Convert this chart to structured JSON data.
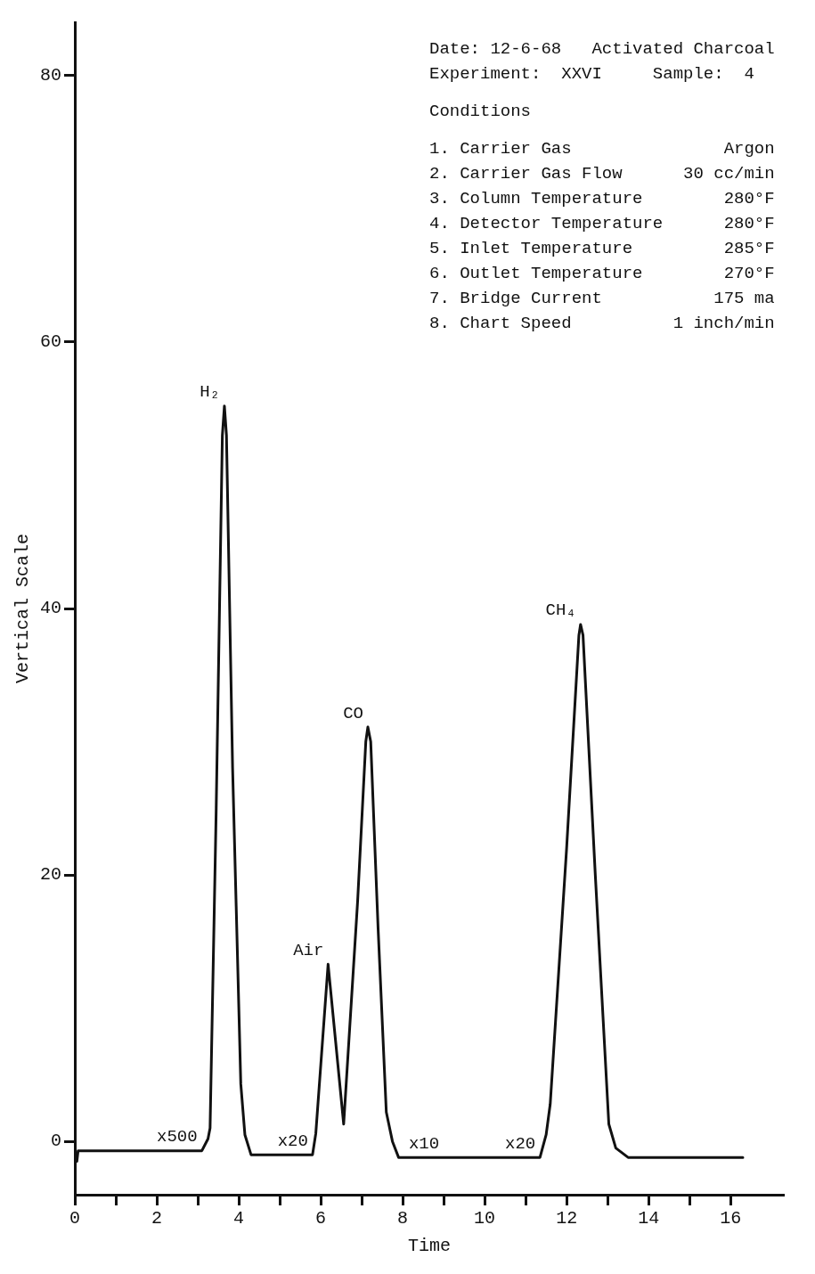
{
  "chart_data": {
    "type": "line",
    "xlabel": "Time",
    "ylabel": "Vertical Scale",
    "xlim": [
      0,
      17.3
    ],
    "ylim": [
      -4,
      84
    ],
    "xticks": [
      0,
      {
        "value": 1,
        "label": null
      },
      2,
      {
        "value": 3,
        "label": null
      },
      4,
      {
        "value": 5,
        "label": null
      },
      6,
      {
        "value": 7,
        "label": null
      },
      8,
      {
        "value": 9,
        "label": null
      },
      10,
      {
        "value": 11,
        "label": null
      },
      12,
      {
        "value": 13,
        "label": null
      },
      14,
      {
        "value": 15,
        "label": null
      },
      16
    ],
    "yticks": [
      0,
      20,
      40,
      60,
      80
    ],
    "grid": false,
    "legend": false,
    "marker": "none",
    "line_style": "solid",
    "series": [
      {
        "color": "#111111",
        "x": [
          0.05,
          0.08,
          1,
          2,
          3.1,
          3.25,
          3.3,
          3.45,
          3.6,
          3.65,
          3.7,
          3.85,
          4.05,
          4.15,
          4.3,
          5.0,
          5.8,
          5.88,
          6.18,
          6.56,
          6.9,
          7.1,
          7.15,
          7.22,
          7.4,
          7.6,
          7.75,
          7.9,
          9,
          10,
          11.35,
          11.5,
          11.6,
          12.0,
          12.3,
          12.34,
          12.4,
          12.7,
          13.03,
          13.2,
          13.5,
          15,
          16.3
        ],
        "values": [
          -1.5,
          -0.7,
          -0.7,
          -0.7,
          -0.7,
          0.2,
          1,
          25,
          53,
          55.2,
          53,
          28,
          4.3,
          0.5,
          -1,
          -1,
          -1,
          0.6,
          13.3,
          1.3,
          18,
          30,
          31.1,
          30,
          16,
          2.2,
          0,
          -1.2,
          -1.2,
          -1.2,
          -1.2,
          0.5,
          2.8,
          22,
          38,
          38.8,
          38,
          20,
          1.3,
          -0.5,
          -1.2,
          -1.2,
          -1.2
        ]
      }
    ],
    "annotations": [
      {
        "text": "H₂",
        "x": 3.65,
        "y": 55.2
      },
      {
        "text": "x500",
        "x": 3.1,
        "y": -0.7
      },
      {
        "text": "Air",
        "x": 6.18,
        "y": 13.3
      },
      {
        "text": "x20",
        "x": 5.8,
        "y": -1
      },
      {
        "text": "CO",
        "x": 7.15,
        "y": 31.1
      },
      {
        "text": "x10",
        "x": 9,
        "y": -1.2
      },
      {
        "text": "CH₄",
        "x": 12.34,
        "y": 38.8
      },
      {
        "text": "x20",
        "x": 11.35,
        "y": -1.2
      },
      "Date: 12-6-68   Activated Charcoal",
      "Experiment:  XXVI     Sample:  4",
      "Conditions",
      "1. Carrier Gas               Argon",
      "2. Carrier Gas Flow      30 cc/min",
      "3. Column Temperature        280°F",
      "4. Detector Temperature      280°F",
      "5. Inlet Temperature         285°F",
      "6. Outlet Temperature        270°F",
      "7. Bridge Current           175 ma",
      "8. Chart Speed          1 inch/min"
    ]
  }
}
